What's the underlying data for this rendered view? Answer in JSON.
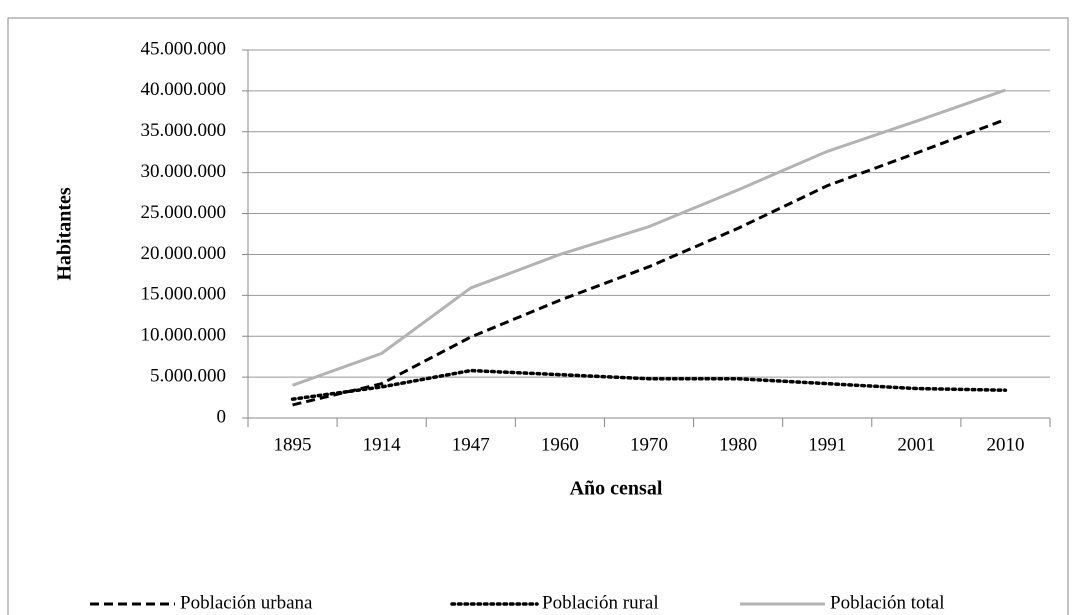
{
  "chart_data": {
    "type": "line",
    "xlabel": "Año censal",
    "ylabel": "Habitantes",
    "categories": [
      "1895",
      "1914",
      "1947",
      "1960",
      "1970",
      "1980",
      "1991",
      "2001",
      "2010"
    ],
    "series": [
      {
        "name": "Población urbana",
        "color": "#000000",
        "style": "dashed",
        "values": [
          1600000,
          4200000,
          9900000,
          14400000,
          18500000,
          23200000,
          28400000,
          32400000,
          36500000
        ]
      },
      {
        "name": "Población rural",
        "color": "#000000",
        "style": "dotted",
        "values": [
          2300000,
          3800000,
          5800000,
          5300000,
          4800000,
          4800000,
          4200000,
          3600000,
          3400000
        ]
      },
      {
        "name": "Población total",
        "color": "#b3b3b3",
        "style": "solid",
        "values": [
          4000000,
          7900000,
          15900000,
          20000000,
          23400000,
          27900000,
          32600000,
          36300000,
          40100000
        ]
      }
    ],
    "ylim": [
      0,
      45000000
    ],
    "yticks": [
      0,
      {
        "value": 5000000,
        "label": "5.000.000"
      },
      {
        "value": 10000000,
        "label": "10.000.000"
      },
      {
        "value": 15000000,
        "label": "15.000.000"
      },
      {
        "value": 20000000,
        "label": "20.000.000"
      },
      {
        "value": 25000000,
        "label": "25.000.000"
      },
      {
        "value": 30000000,
        "label": "30.000.000"
      },
      {
        "value": 35000000,
        "label": "35.000.000"
      },
      {
        "value": 40000000,
        "label": "40.000.000"
      },
      {
        "value": 45000000,
        "label": "45.000.000"
      }
    ],
    "grid": true,
    "legend": "bottom"
  }
}
